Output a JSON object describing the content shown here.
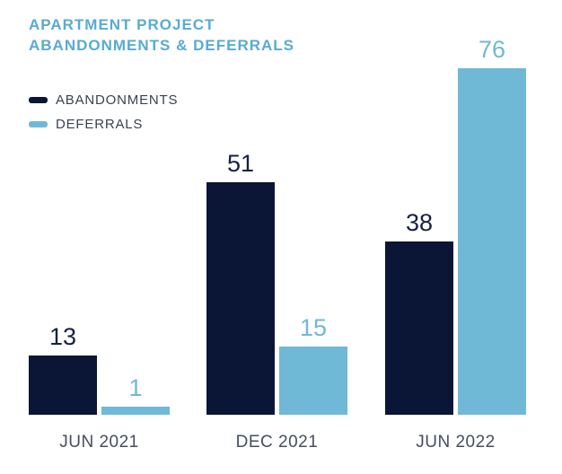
{
  "page": {
    "background": "#ffffff"
  },
  "chart_data": {
    "type": "bar",
    "title": "APARTMENT PROJECT ABANDONMENTS & DEFERRALS",
    "title_lines": [
      "APARTMENT PROJECT",
      "ABANDONMENTS & DEFERRALS"
    ],
    "categories": [
      "JUN 2021",
      "DEC 2021",
      "JUN 2022"
    ],
    "series": [
      {
        "name": "ABANDONMENTS",
        "color": "#0b1636",
        "values": [
          13,
          51,
          38
        ]
      },
      {
        "name": "DEFERRALS",
        "color": "#6fb9d6",
        "values": [
          1,
          15,
          76
        ]
      }
    ],
    "ylim": [
      0,
      91
    ],
    "grid": false,
    "axes_visible": false,
    "legend_position": "top-left",
    "value_labels": true
  },
  "colors": {
    "title": "#58abd1",
    "legend_text": "#3a4250",
    "axis_label": "#454e5e",
    "value_label_abandonments": "#162042",
    "value_label_deferrals": "#6fb9d6",
    "bar_abandonments": "#0b1636",
    "bar_deferrals": "#6fb9d6",
    "background": "#ffffff"
  }
}
